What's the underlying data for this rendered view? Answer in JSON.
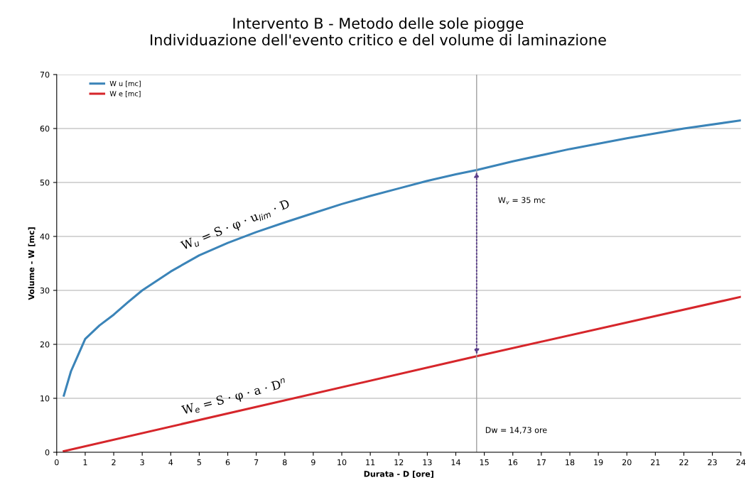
{
  "chart_data": {
    "type": "line",
    "title": "Intervento B - Metodo delle sole piogge\nIndividuazione dell'evento critico e del volume di laminazione",
    "xlabel": "Durata - D [ore]",
    "ylabel": "Volume - W [mc]",
    "series": [
      {
        "name": "W u [mc]",
        "color": "#3b84b8",
        "x": [
          0.25,
          0.5,
          1,
          1.5,
          2,
          2.5,
          3,
          4,
          5,
          6,
          7,
          8,
          9,
          10,
          11,
          12,
          13,
          14,
          14.73,
          16,
          18,
          20,
          22,
          24
        ],
        "values": [
          10.5,
          15,
          21,
          23.5,
          25.5,
          27.8,
          30,
          33.5,
          36.5,
          38.8,
          40.8,
          42.6,
          44.3,
          46,
          47.5,
          48.9,
          50.3,
          51.5,
          52.3,
          53.9,
          56.2,
          58.2,
          60,
          61.5
        ]
      },
      {
        "name": "W e [mc]",
        "color": "#d6262b",
        "x": [
          0.25,
          14.73,
          24
        ],
        "values": [
          0.2,
          17.8,
          28.8
        ]
      }
    ],
    "xlim": [
      0,
      24
    ],
    "xticks": [
      0,
      1,
      2,
      3,
      4,
      5,
      6,
      7,
      8,
      9,
      10,
      11,
      12,
      13,
      14,
      15,
      16,
      17,
      18,
      19,
      20,
      21,
      22,
      23,
      24
    ],
    "ylim": [
      0,
      70
    ],
    "yticks": [
      0,
      10,
      20,
      30,
      40,
      50,
      60,
      70
    ],
    "grid": "y",
    "legend": "top left",
    "marker": "none",
    "line_style": "solid",
    "ref_lines": [
      {
        "axis": "x",
        "value": 14.73,
        "label": "Dw = 14,73 ore",
        "color": "#a0a0a0"
      }
    ],
    "annotations": [
      "W$_{u}$ = S · φ · u$_{lim}$ · D",
      "W$_{e}$ = S · φ · a · D$^{n}$",
      "W$_{v}$ = 35 mc"
    ]
  }
}
